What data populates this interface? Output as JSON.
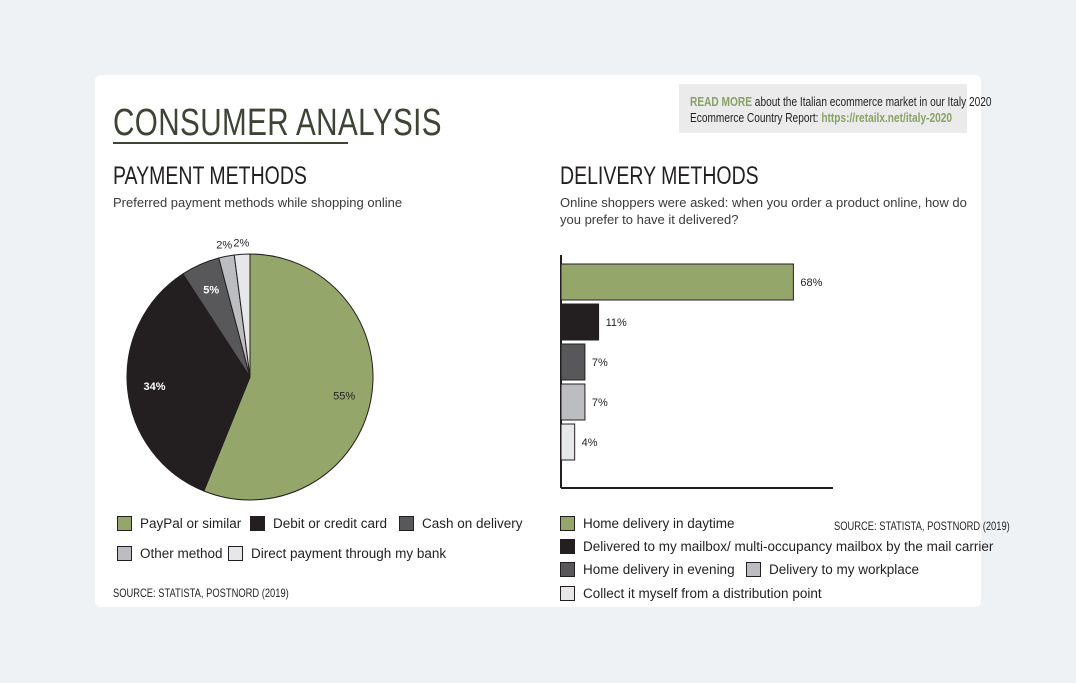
{
  "header": {
    "title": "CONSUMER ANALYSIS",
    "read_more": {
      "accent": "READ MORE",
      "text1": "about the Italian ecommerce market in our Italy 2020",
      "text2": "Ecommerce Country Report:",
      "link": "https://retailx.net/italy-2020"
    }
  },
  "payment": {
    "title": "PAYMENT METHODS",
    "subtitle": "Preferred payment methods while shopping online",
    "source": "SOURCE: STATISTA, POSTNORD (2019)"
  },
  "delivery": {
    "title": "DELIVERY METHODS",
    "subtitle_line1": "Online shoppers were asked: when you order a product online, how do",
    "subtitle_line2": "you prefer to have it delivered?",
    "source": "SOURCE: STATISTA, POSTNORD (2019)"
  },
  "chart_data": [
    {
      "type": "pie",
      "title": "PAYMENT METHODS",
      "categories": [
        "PayPal or similar",
        "Debit or credit card",
        "Cash on delivery",
        "Other method",
        "Direct payment through my bank"
      ],
      "values": [
        55,
        34,
        5,
        2,
        2
      ],
      "labels": [
        "55%",
        "34%",
        "5%",
        "2%",
        "2%"
      ],
      "colors": [
        "#95a66a",
        "#231f20",
        "#58585a",
        "#bcbdc0",
        "#e6e7e8"
      ],
      "label_colors": [
        "#231f20",
        "#ffffff",
        "#ffffff",
        "#231f20",
        "#231f20"
      ]
    },
    {
      "type": "bar",
      "orientation": "horizontal",
      "title": "DELIVERY METHODS",
      "categories": [
        "Home delivery in daytime",
        "Delivered to my mailbox/ multi-occupancy mailbox by the mail carrier",
        "Home delivery in evening",
        "Delivery to my workplace",
        "Collect it myself from a distribution point"
      ],
      "values": [
        68,
        11,
        7,
        7,
        4
      ],
      "labels": [
        "68%",
        "11%",
        "7%",
        "7%",
        "4%"
      ],
      "colors": [
        "#95a66a",
        "#231f20",
        "#58585a",
        "#bcbdc0",
        "#e6e7e8"
      ],
      "xlim": [
        0,
        79
      ]
    }
  ]
}
